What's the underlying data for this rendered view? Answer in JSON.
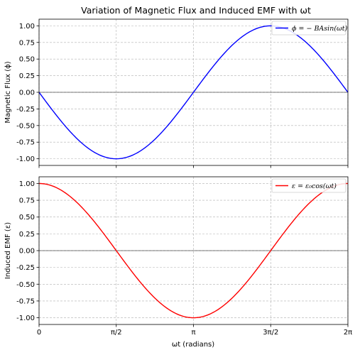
{
  "title": "Variation of Magnetic Flux and Induced EMF with ωt",
  "x_tick_labels": [
    "0",
    "π/2",
    "π",
    "3π/2",
    "2π"
  ],
  "y_tick_labels": [
    "1.00",
    "0.75",
    "0.50",
    "0.25",
    "0.00",
    "-0.25",
    "-0.50",
    "-0.75",
    "-1.00"
  ],
  "chart_data": [
    {
      "type": "line",
      "title": "Variation of Magnetic Flux and Induced EMF with ωt",
      "xlabel": "",
      "ylabel": "Magnetic Flux (ϕ)",
      "xlim": [
        0,
        6.283
      ],
      "ylim": [
        -1.1,
        1.1
      ],
      "grid": true,
      "legend_position": "top-right",
      "x_ticks": [
        0,
        1.5708,
        3.1416,
        4.7124,
        6.2832
      ],
      "y_ticks": [
        -1.0,
        -0.75,
        -0.5,
        -0.25,
        0.0,
        0.25,
        0.5,
        0.75,
        1.0
      ],
      "series": [
        {
          "name": "ϕ = − BAsin(ωt)",
          "color": "#0000ff",
          "function": "-sin(x)",
          "x": [
            0,
            0.3927,
            0.7854,
            1.1781,
            1.5708,
            1.9635,
            2.3562,
            2.7489,
            3.1416,
            3.5343,
            3.927,
            4.3197,
            4.7124,
            5.1051,
            5.4978,
            5.8905,
            6.2832
          ],
          "values": [
            0,
            -0.383,
            -0.707,
            -0.924,
            -1.0,
            -0.924,
            -0.707,
            -0.383,
            0,
            0.383,
            0.707,
            0.924,
            1.0,
            0.924,
            0.707,
            0.383,
            0
          ]
        }
      ]
    },
    {
      "type": "line",
      "xlabel": "ωt (radians)",
      "ylabel": "Induced EMF (ε)",
      "xlim": [
        0,
        6.283
      ],
      "ylim": [
        -1.1,
        1.1
      ],
      "grid": true,
      "legend_position": "top-right",
      "x_ticks": [
        0,
        1.5708,
        3.1416,
        4.7124,
        6.2832
      ],
      "y_ticks": [
        -1.0,
        -0.75,
        -0.5,
        -0.25,
        0.0,
        0.25,
        0.5,
        0.75,
        1.0
      ],
      "series": [
        {
          "name": "ε = ε₀cos(ωt)",
          "color": "#ff0000",
          "function": "cos(x)",
          "x": [
            0,
            0.3927,
            0.7854,
            1.1781,
            1.5708,
            1.9635,
            2.3562,
            2.7489,
            3.1416,
            3.5343,
            3.927,
            4.3197,
            4.7124,
            5.1051,
            5.4978,
            5.8905,
            6.2832
          ],
          "values": [
            1.0,
            0.924,
            0.707,
            0.383,
            0,
            -0.383,
            -0.707,
            -0.924,
            -1.0,
            -0.924,
            -0.707,
            -0.383,
            0,
            0.383,
            0.707,
            0.924,
            1.0
          ]
        }
      ]
    }
  ]
}
